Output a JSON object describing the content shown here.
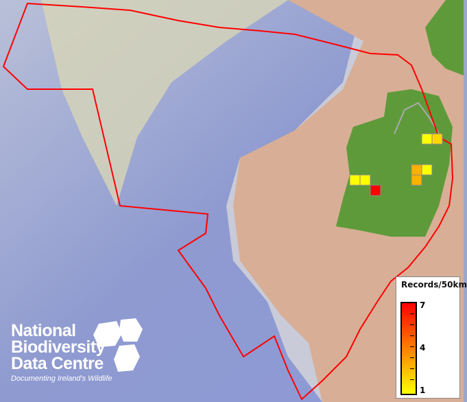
{
  "map": {
    "boundary_color": "#ff0000",
    "land_color": "#5f9a3a",
    "cells": [
      {
        "value": 1,
        "color": "#ffff00"
      },
      {
        "value": 2,
        "color": "#ffd700"
      },
      {
        "value": 3,
        "color": "#ffb000"
      },
      {
        "value": 1,
        "color": "#ffff00"
      },
      {
        "value": 3,
        "color": "#ffb000"
      },
      {
        "value": 1,
        "color": "#ffff00"
      },
      {
        "value": 1,
        "color": "#ffff00"
      },
      {
        "value": 7,
        "color": "#ff0000"
      }
    ]
  },
  "legend": {
    "title": "Records/50km",
    "max_label": "7",
    "mid_label": "4",
    "min_label": "1",
    "colors": {
      "max": "#ff0000",
      "mid": "#ff8000",
      "min": "#ffff00"
    }
  },
  "logo": {
    "line1": "National",
    "line2": "Biodiversity",
    "line3": "Data Centre",
    "tagline": "Documenting Ireland's Wildlife"
  }
}
